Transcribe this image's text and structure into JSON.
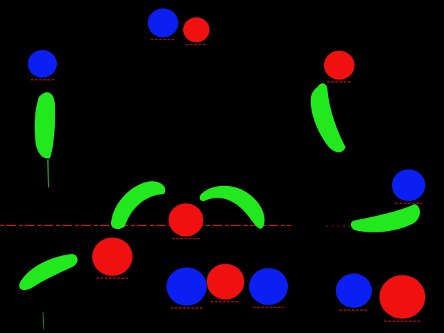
{
  "image": {
    "background": "#000000",
    "colors": {
      "blue": "#0b1ff2",
      "red": "#f01010",
      "green": "#22e81e",
      "edge": "#c01010"
    },
    "objects": [
      {
        "kind": "ball",
        "color": "blue"
      },
      {
        "kind": "ball",
        "color": "red"
      },
      {
        "kind": "ball",
        "color": "blue"
      },
      {
        "kind": "banana",
        "color": "green"
      },
      {
        "kind": "ball",
        "color": "red"
      },
      {
        "kind": "banana",
        "color": "green"
      },
      {
        "kind": "ball",
        "color": "blue"
      },
      {
        "kind": "banana",
        "color": "green"
      },
      {
        "kind": "banana",
        "color": "green"
      },
      {
        "kind": "banana",
        "color": "green"
      },
      {
        "kind": "ball",
        "color": "red"
      },
      {
        "kind": "banana",
        "color": "green"
      },
      {
        "kind": "ball",
        "color": "red"
      },
      {
        "kind": "ball",
        "color": "blue"
      },
      {
        "kind": "ball",
        "color": "red"
      },
      {
        "kind": "ball",
        "color": "blue"
      },
      {
        "kind": "ball",
        "color": "blue"
      },
      {
        "kind": "ball",
        "color": "red"
      }
    ]
  }
}
